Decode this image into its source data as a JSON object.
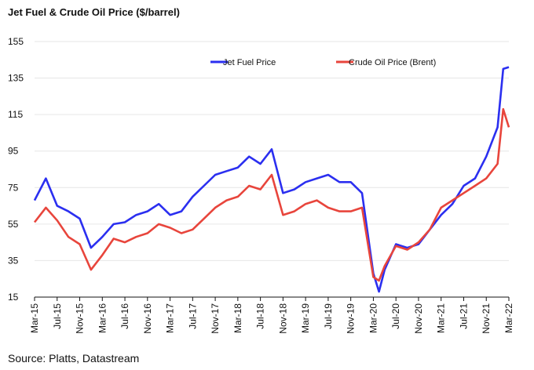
{
  "chart_data": {
    "type": "line",
    "title": "Jet Fuel & Crude Oil Price ($/barrel)",
    "xlabel": "",
    "ylabel": "",
    "ylim": [
      15,
      155
    ],
    "y_ticks": [
      15,
      35,
      55,
      75,
      95,
      115,
      135,
      155
    ],
    "x_ticks": [
      "Mar-15",
      "Jul-15",
      "Nov-15",
      "Mar-16",
      "Jul-16",
      "Nov-16",
      "Mar-17",
      "Jul-17",
      "Nov-17",
      "Mar-18",
      "Jul-18",
      "Nov-18",
      "Mar-19",
      "Jul-19",
      "Nov-19",
      "Mar-20",
      "Jul-20",
      "Nov-20",
      "Mar-21",
      "Jul-21",
      "Nov-21",
      "Mar-22"
    ],
    "grid": "horizontal",
    "legend_position": "top-right",
    "x": [
      "Mar-15",
      "May-15",
      "Jul-15",
      "Sep-15",
      "Nov-15",
      "Jan-16",
      "Mar-16",
      "May-16",
      "Jul-16",
      "Sep-16",
      "Nov-16",
      "Jan-17",
      "Mar-17",
      "May-17",
      "Jul-17",
      "Sep-17",
      "Nov-17",
      "Jan-18",
      "Mar-18",
      "May-18",
      "Jul-18",
      "Sep-18",
      "Nov-18",
      "Jan-19",
      "Mar-19",
      "May-19",
      "Jul-19",
      "Sep-19",
      "Nov-19",
      "Jan-20",
      "Mar-20",
      "Apr-20",
      "May-20",
      "Jul-20",
      "Sep-20",
      "Nov-20",
      "Jan-21",
      "Mar-21",
      "May-21",
      "Jul-21",
      "Sep-21",
      "Nov-21",
      "Jan-22",
      "Feb-22",
      "Mar-22"
    ],
    "series": [
      {
        "name": "Jet Fuel Price",
        "color": "#2b2ff0",
        "values": [
          68,
          80,
          65,
          62,
          58,
          42,
          48,
          55,
          56,
          60,
          62,
          66,
          60,
          62,
          70,
          76,
          82,
          84,
          86,
          92,
          88,
          96,
          72,
          74,
          78,
          80,
          82,
          78,
          78,
          72,
          28,
          18,
          30,
          44,
          42,
          44,
          52,
          60,
          66,
          76,
          80,
          92,
          108,
          140,
          141
        ]
      },
      {
        "name": "Crude Oil Price (Brent)",
        "color": "#e8453c",
        "values": [
          56,
          64,
          57,
          48,
          44,
          30,
          38,
          47,
          45,
          48,
          50,
          55,
          53,
          50,
          52,
          58,
          64,
          68,
          70,
          76,
          74,
          82,
          60,
          62,
          66,
          68,
          64,
          62,
          62,
          64,
          26,
          24,
          32,
          43,
          41,
          45,
          52,
          64,
          68,
          72,
          76,
          80,
          88,
          118,
          108
        ]
      }
    ]
  }
}
